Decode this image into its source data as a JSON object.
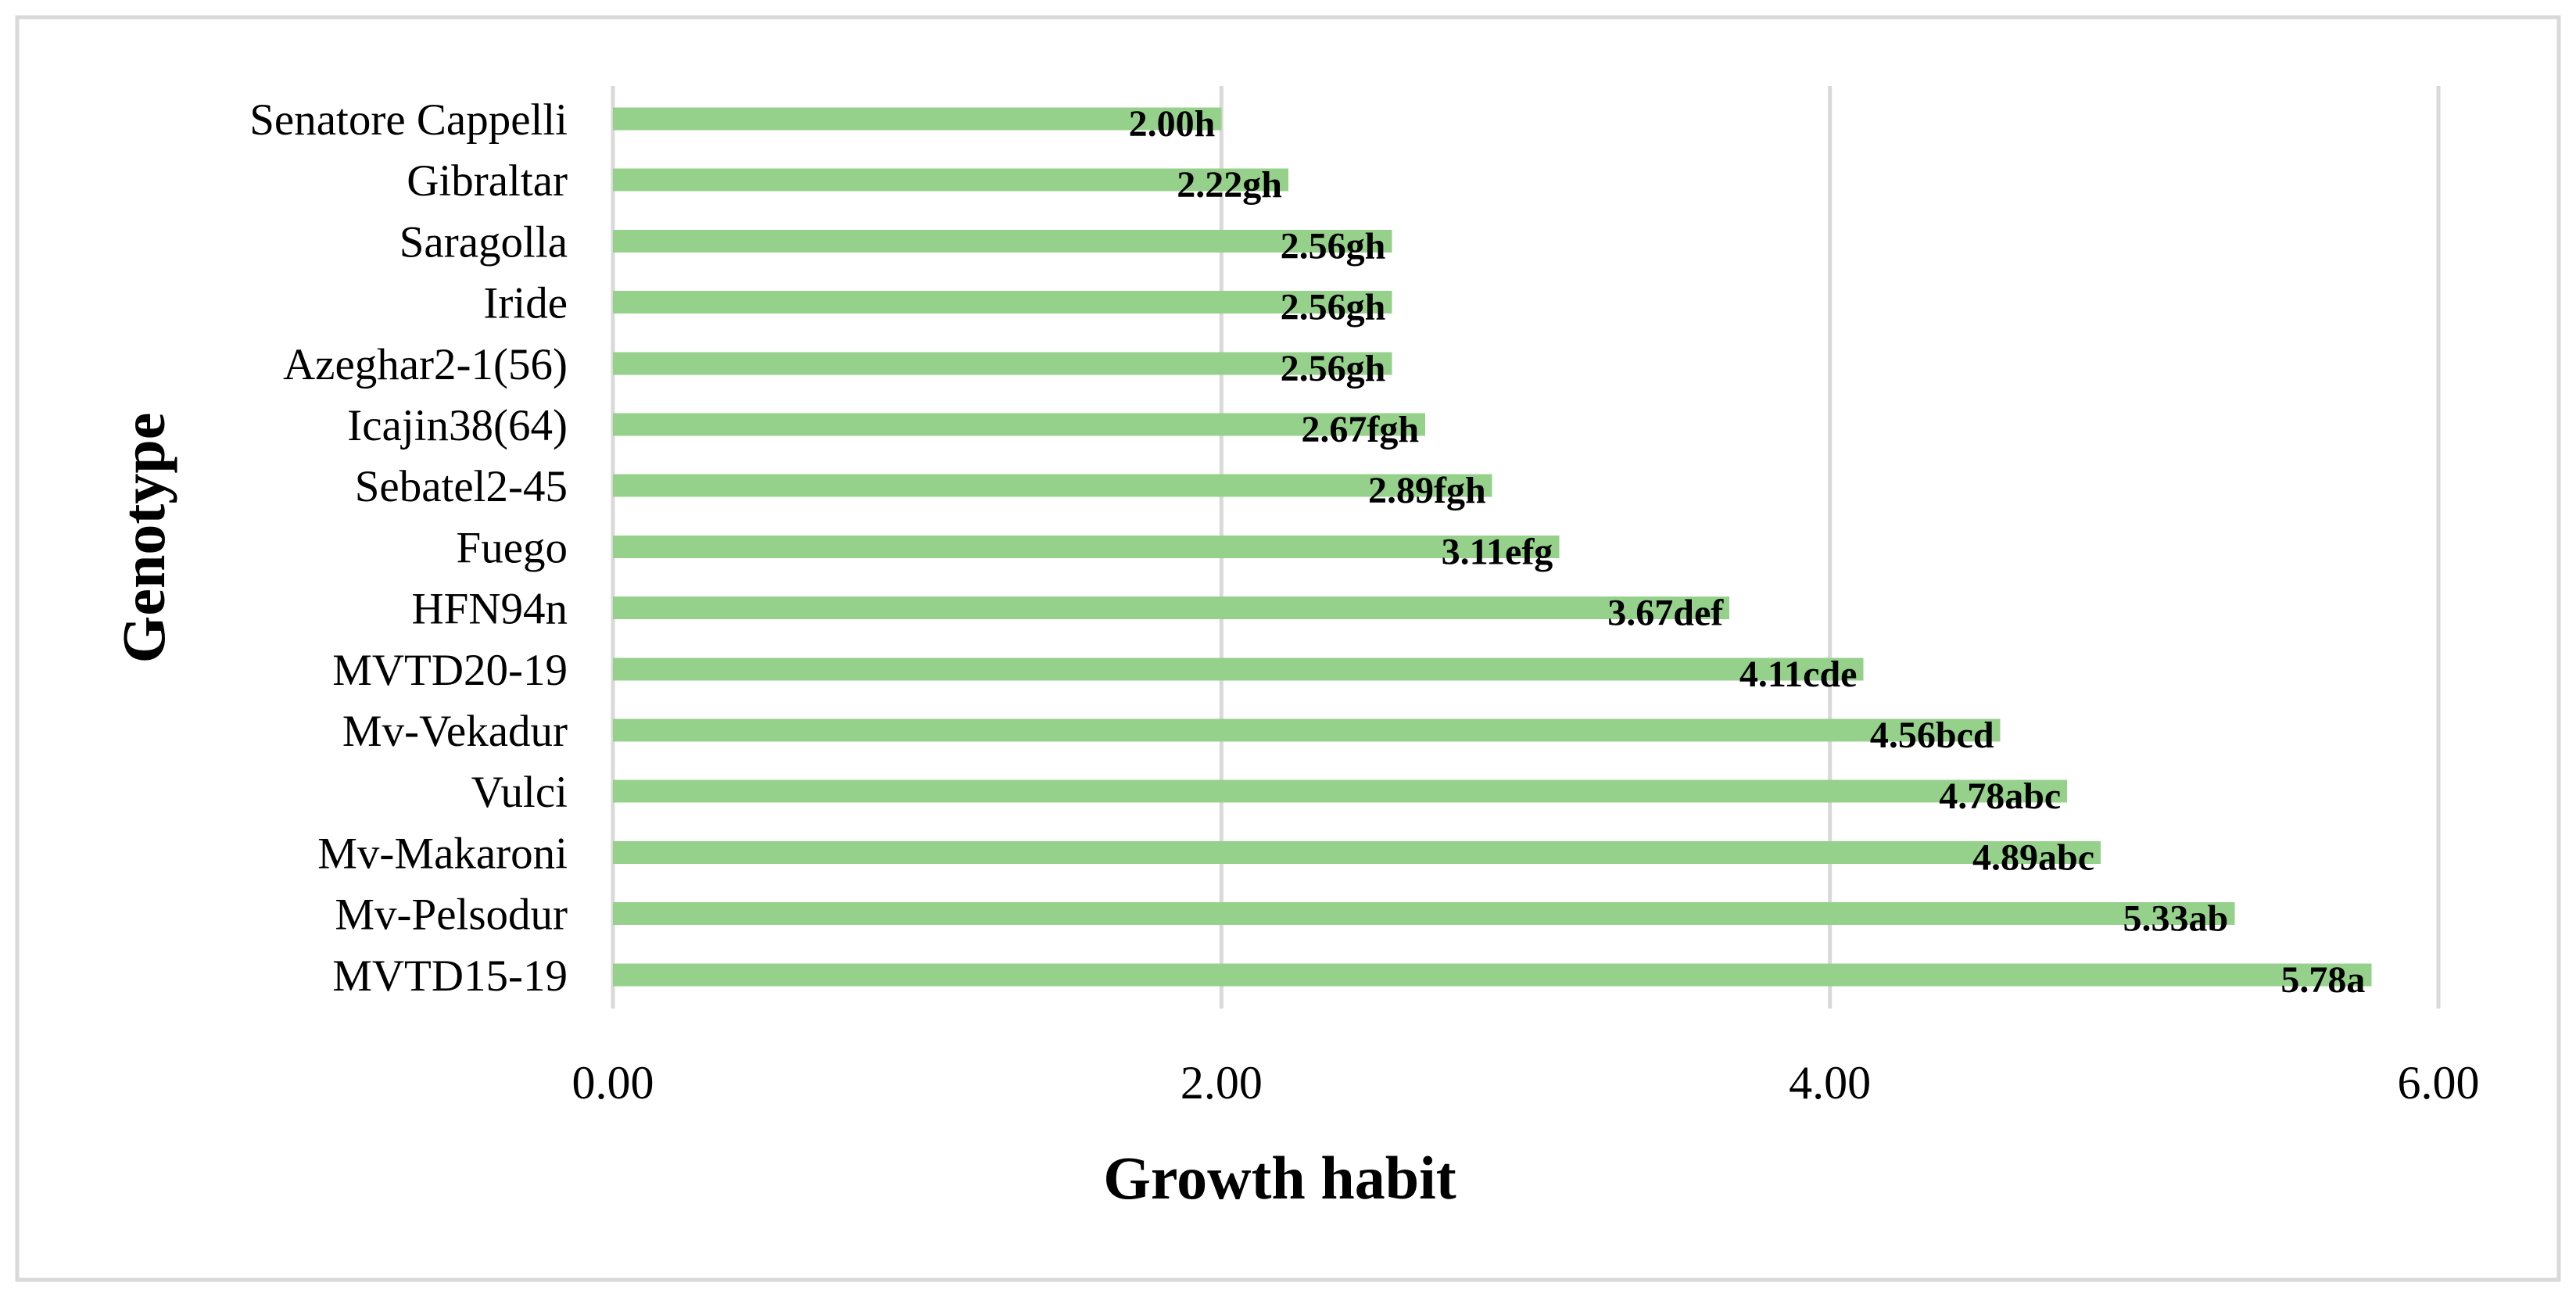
{
  "chart_data": {
    "type": "bar",
    "orientation": "horizontal",
    "xlabel": "Growth habit",
    "ylabel": "Genotype",
    "xlim": [
      0,
      6
    ],
    "x_ticks": [
      0,
      2,
      4,
      6
    ],
    "x_tick_labels": [
      "0.00",
      "2.00",
      "4.00",
      "6.00"
    ],
    "grid": true,
    "legend": "none",
    "bar_color": "#95d18b",
    "categories": [
      "Senatore Cappelli",
      "Gibraltar",
      "Saragolla",
      "Iride",
      "Azeghar2-1(56)",
      "Icajin38(64)",
      "Sebatel2-45",
      "Fuego",
      "HFN94n",
      "MVTD20-19",
      "Mv-Vekadur",
      "Vulci",
      "Mv-Makaroni",
      "Mv-Pelsodur",
      "MVTD15-19"
    ],
    "values": [
      2.0,
      2.22,
      2.56,
      2.56,
      2.56,
      2.67,
      2.89,
      3.11,
      3.67,
      4.11,
      4.56,
      4.78,
      4.89,
      5.33,
      5.78
    ],
    "data_labels": [
      "2.00h",
      "2.22gh",
      "2.56gh",
      "2.56gh",
      "2.56gh",
      "2.67fgh",
      "2.89fgh",
      "3.11efg",
      "3.67def",
      "4.11cde",
      "4.56bcd",
      "4.78abc",
      "4.89abc",
      "5.33ab",
      "5.78a"
    ]
  }
}
